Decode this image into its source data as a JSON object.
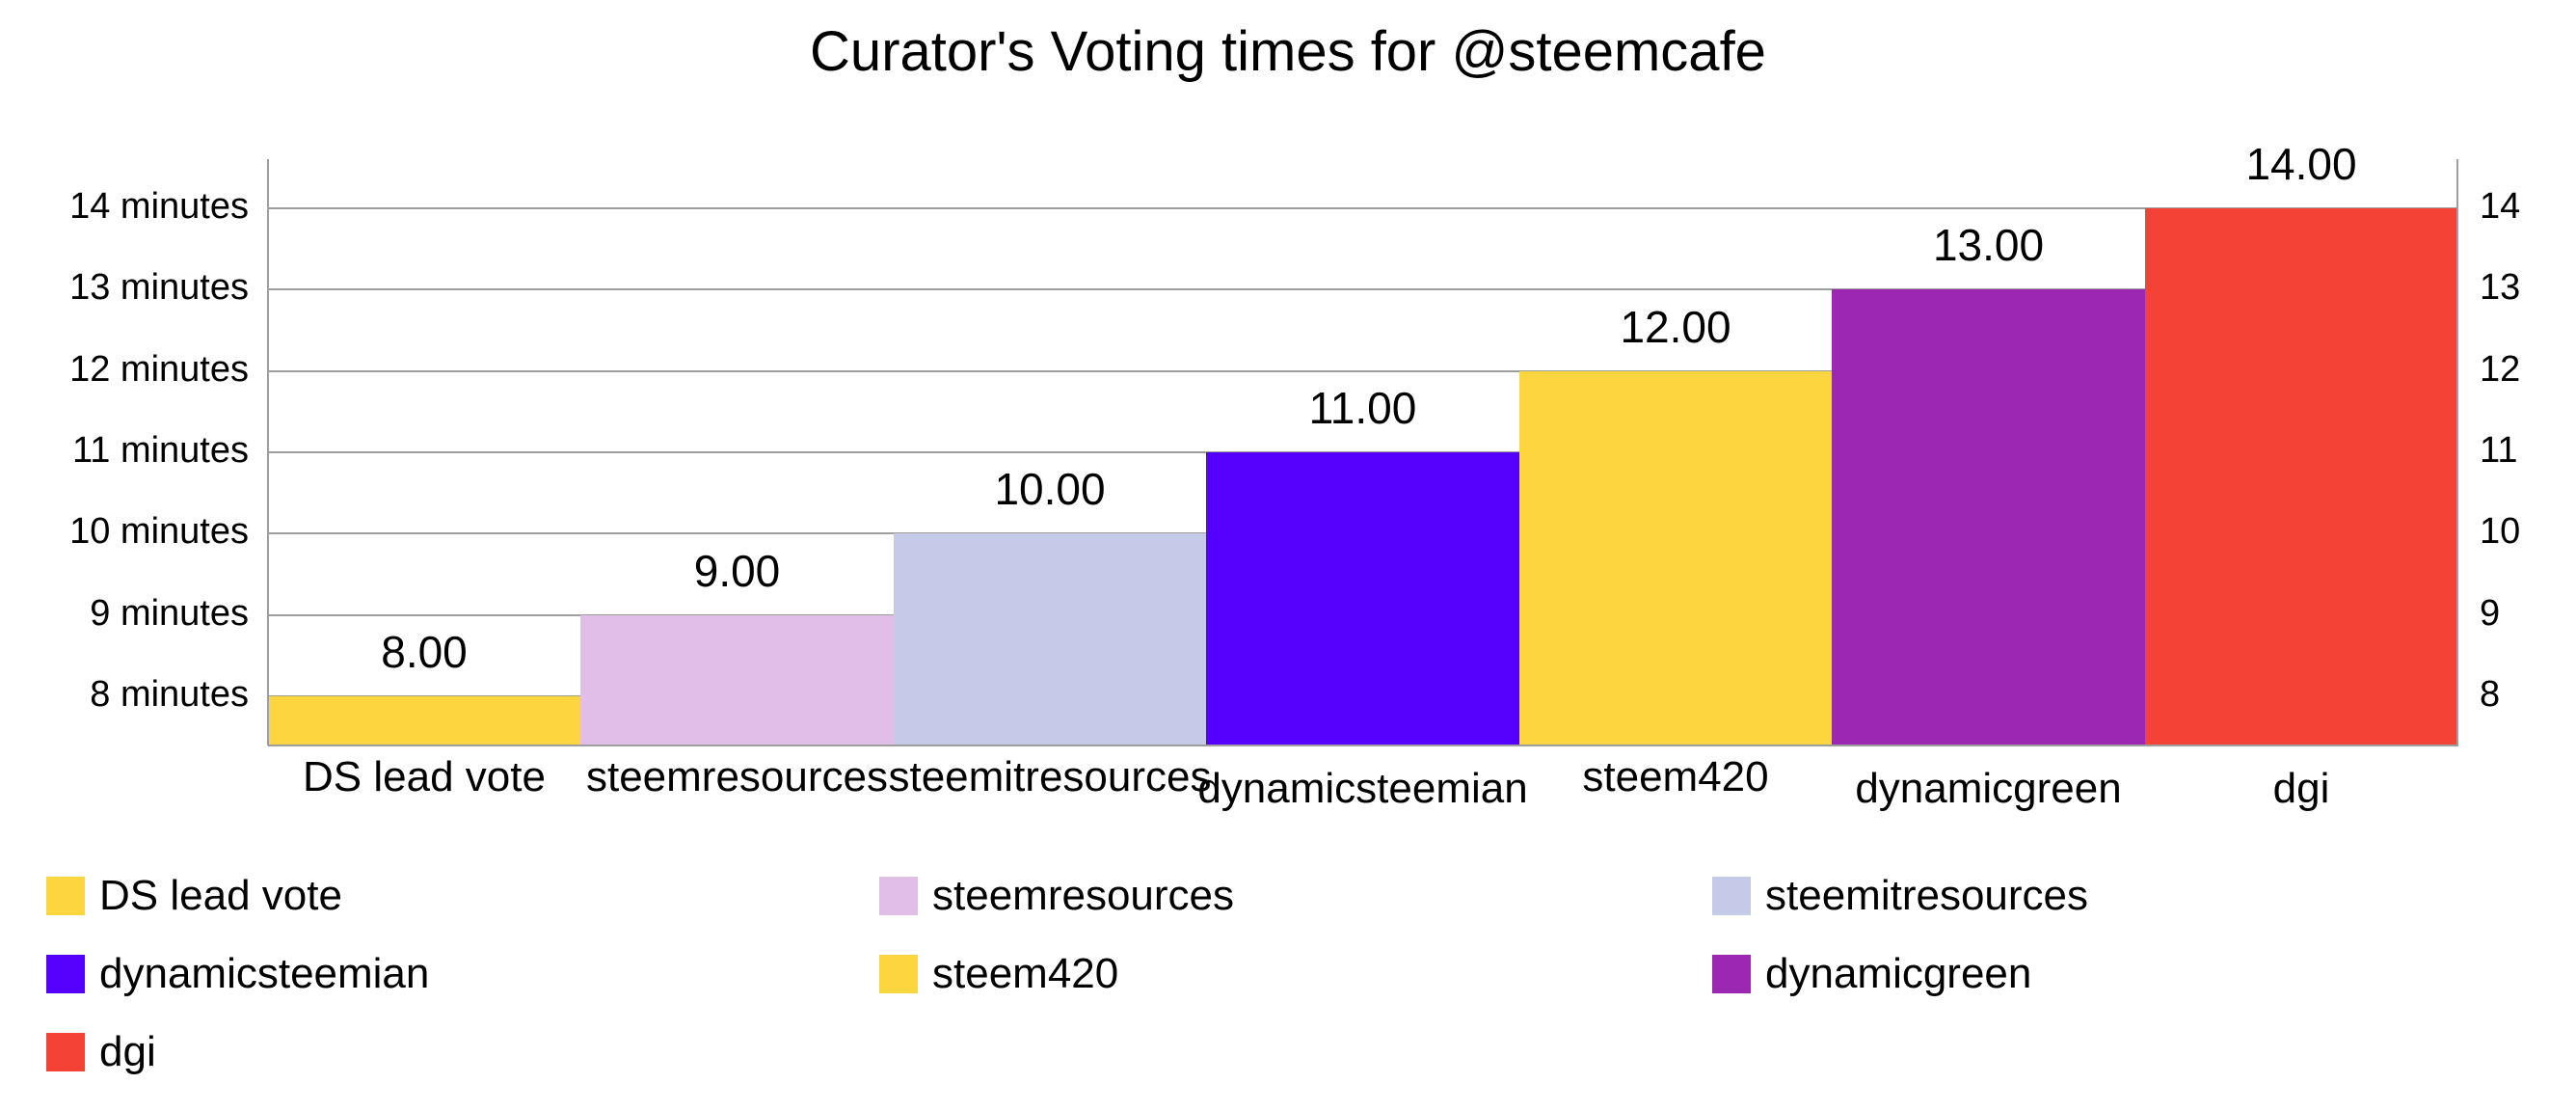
{
  "chart_data": {
    "type": "bar",
    "title": "Curator's Voting times for @steemcafe",
    "xlabel": "",
    "ylabel": "",
    "categories": [
      "DS lead vote",
      "steemresources",
      "steemitresources",
      "dynamicsteemian",
      "steem420",
      "dynamicgreen",
      "dgi"
    ],
    "values": [
      8,
      9,
      10,
      11,
      12,
      13,
      14
    ],
    "value_labels": [
      "8.00",
      "9.00",
      "10.00",
      "11.00",
      "12.00",
      "13.00",
      "14.00"
    ],
    "colors": [
      "#FDD63F",
      "#E1BEE7",
      "#C5CAE9",
      "#5500FF",
      "#FDD63F",
      "#9C27B0",
      "#F44336"
    ],
    "ylim": [
      7.4,
      14.6
    ],
    "y_ticks_left": [
      "14 minutes",
      "13 minutes",
      "12 minutes",
      "11 minutes",
      "10 minutes",
      "9 minutes",
      "8 minutes"
    ],
    "y_ticks_right": [
      "14",
      "13",
      "12",
      "11",
      "10",
      "9",
      "8"
    ],
    "y_tick_values": [
      14,
      13,
      12,
      11,
      10,
      9,
      8
    ],
    "grid": true,
    "legend_position": "bottom",
    "legend": [
      {
        "label": "DS lead vote",
        "color": "#FDD63F"
      },
      {
        "label": "steemresources",
        "color": "#E1BEE7"
      },
      {
        "label": "steemitresources",
        "color": "#C5CAE9"
      },
      {
        "label": "dynamicsteemian",
        "color": "#5500FF"
      },
      {
        "label": "steem420",
        "color": "#FDD63F"
      },
      {
        "label": "dynamicgreen",
        "color": "#9C27B0"
      },
      {
        "label": "dgi",
        "color": "#F44336"
      }
    ]
  }
}
